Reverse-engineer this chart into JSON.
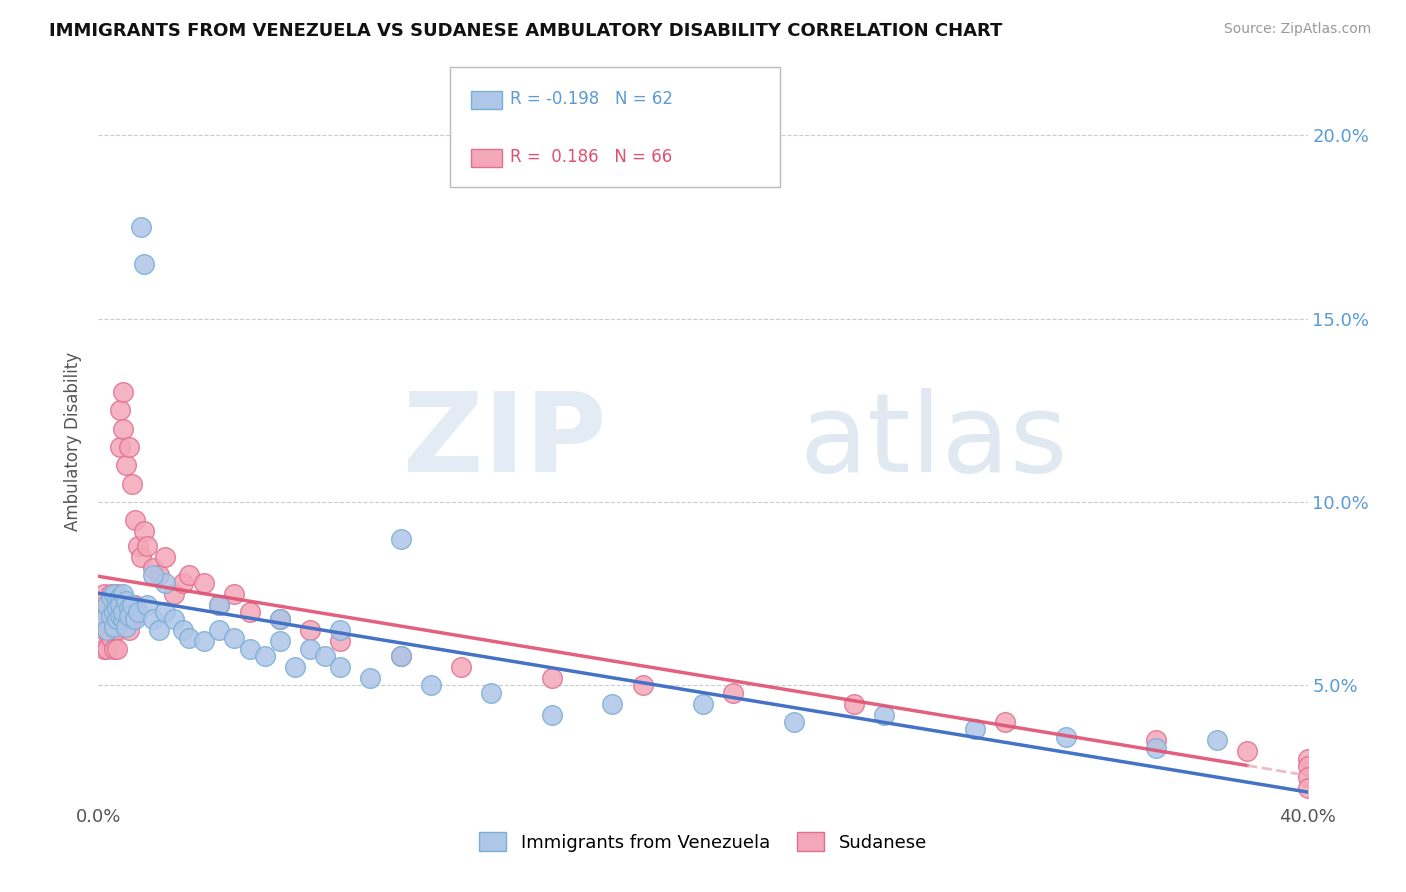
{
  "title": "IMMIGRANTS FROM VENEZUELA VS SUDANESE AMBULATORY DISABILITY CORRELATION CHART",
  "source": "Source: ZipAtlas.com",
  "ylabel": "Ambulatory Disability",
  "ytick_values": [
    0.05,
    0.1,
    0.15,
    0.2
  ],
  "xmin": 0.0,
  "xmax": 0.4,
  "ymin": 0.018,
  "ymax": 0.215,
  "legend_blue_R": "-0.198",
  "legend_blue_N": "62",
  "legend_pink_R": "0.186",
  "legend_pink_N": "66",
  "legend_label_blue": "Immigrants from Venezuela",
  "legend_label_pink": "Sudanese",
  "blue_color": "#aec6e8",
  "blue_edge": "#7aafd4",
  "pink_color": "#f4a7b9",
  "pink_edge": "#e07090",
  "trend_blue_color": "#4472c4",
  "trend_pink_color": "#e05070",
  "trend_pink_dash_color": "#e8a0b0",
  "blue_scatter_x": [
    0.002,
    0.003,
    0.003,
    0.004,
    0.004,
    0.005,
    0.005,
    0.005,
    0.006,
    0.006,
    0.006,
    0.007,
    0.007,
    0.007,
    0.008,
    0.008,
    0.008,
    0.009,
    0.009,
    0.01,
    0.01,
    0.011,
    0.012,
    0.013,
    0.014,
    0.015,
    0.016,
    0.018,
    0.02,
    0.022,
    0.025,
    0.028,
    0.03,
    0.035,
    0.04,
    0.045,
    0.05,
    0.055,
    0.06,
    0.065,
    0.07,
    0.075,
    0.08,
    0.09,
    0.1,
    0.11,
    0.13,
    0.15,
    0.17,
    0.2,
    0.23,
    0.26,
    0.29,
    0.32,
    0.35,
    0.37,
    0.04,
    0.06,
    0.08,
    0.1,
    0.022,
    0.018
  ],
  "blue_scatter_y": [
    0.068,
    0.072,
    0.065,
    0.074,
    0.069,
    0.075,
    0.07,
    0.066,
    0.073,
    0.068,
    0.071,
    0.074,
    0.069,
    0.072,
    0.075,
    0.068,
    0.07,
    0.073,
    0.066,
    0.071,
    0.069,
    0.072,
    0.068,
    0.07,
    0.175,
    0.165,
    0.072,
    0.068,
    0.065,
    0.07,
    0.068,
    0.065,
    0.063,
    0.062,
    0.065,
    0.063,
    0.06,
    0.058,
    0.062,
    0.055,
    0.06,
    0.058,
    0.055,
    0.052,
    0.058,
    0.05,
    0.048,
    0.042,
    0.045,
    0.045,
    0.04,
    0.042,
    0.038,
    0.036,
    0.033,
    0.035,
    0.072,
    0.068,
    0.065,
    0.09,
    0.078,
    0.08
  ],
  "pink_scatter_x": [
    0.001,
    0.001,
    0.002,
    0.002,
    0.002,
    0.003,
    0.003,
    0.003,
    0.003,
    0.004,
    0.004,
    0.004,
    0.004,
    0.005,
    0.005,
    0.005,
    0.005,
    0.005,
    0.006,
    0.006,
    0.006,
    0.006,
    0.007,
    0.007,
    0.007,
    0.008,
    0.008,
    0.008,
    0.009,
    0.009,
    0.01,
    0.01,
    0.011,
    0.011,
    0.012,
    0.012,
    0.013,
    0.014,
    0.015,
    0.016,
    0.018,
    0.02,
    0.022,
    0.025,
    0.028,
    0.03,
    0.035,
    0.04,
    0.045,
    0.05,
    0.06,
    0.07,
    0.08,
    0.1,
    0.12,
    0.15,
    0.18,
    0.21,
    0.25,
    0.3,
    0.35,
    0.38,
    0.4,
    0.4,
    0.4,
    0.4
  ],
  "pink_scatter_y": [
    0.068,
    0.072,
    0.065,
    0.075,
    0.06,
    0.07,
    0.065,
    0.072,
    0.06,
    0.068,
    0.075,
    0.063,
    0.07,
    0.065,
    0.073,
    0.068,
    0.072,
    0.06,
    0.065,
    0.07,
    0.075,
    0.06,
    0.125,
    0.115,
    0.068,
    0.12,
    0.068,
    0.13,
    0.072,
    0.11,
    0.065,
    0.115,
    0.068,
    0.105,
    0.095,
    0.072,
    0.088,
    0.085,
    0.092,
    0.088,
    0.082,
    0.08,
    0.085,
    0.075,
    0.078,
    0.08,
    0.078,
    0.072,
    0.075,
    0.07,
    0.068,
    0.065,
    0.062,
    0.058,
    0.055,
    0.052,
    0.05,
    0.048,
    0.045,
    0.04,
    0.035,
    0.032,
    0.03,
    0.028,
    0.025,
    0.022
  ]
}
